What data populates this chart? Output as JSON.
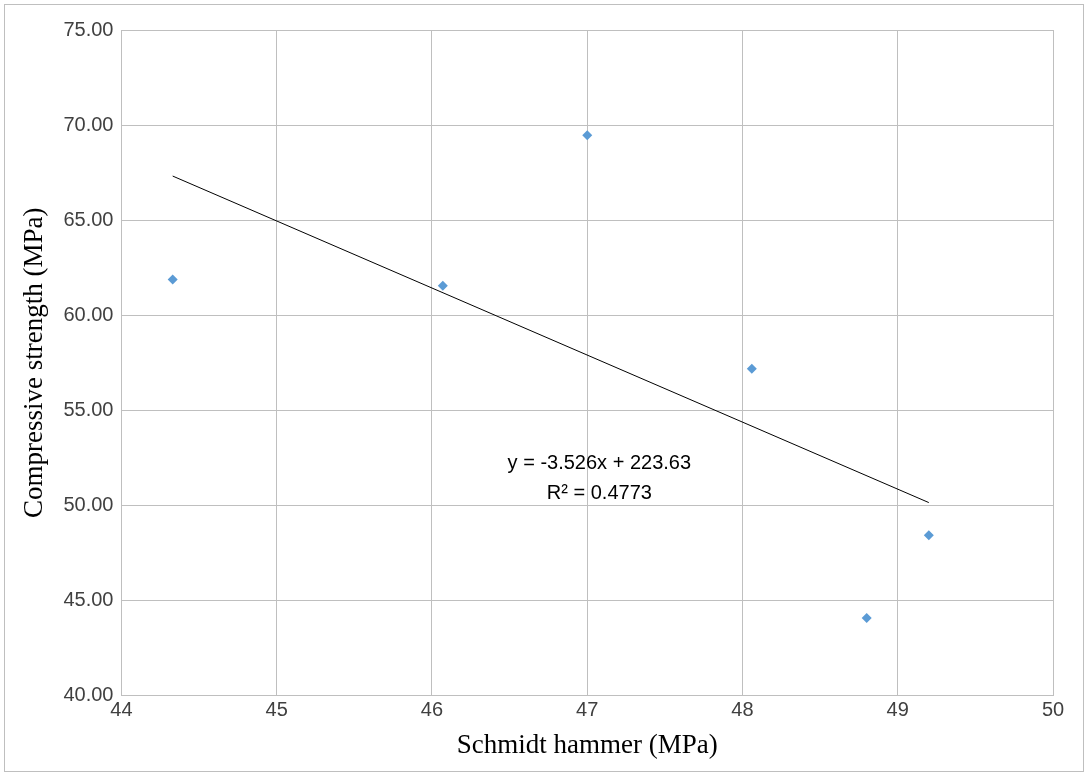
{
  "chart_data": {
    "type": "scatter",
    "xlabel": "Schmidt hammer (MPa)",
    "ylabel": "Compressive strength (MPa)",
    "xlim": [
      44,
      50
    ],
    "xticks": [
      44,
      45,
      46,
      47,
      48,
      49,
      50
    ],
    "ylim": [
      40,
      75
    ],
    "yticks": [
      {
        "value": 40,
        "label": "40.00"
      },
      {
        "value": 45,
        "label": "45.00"
      },
      {
        "value": 50,
        "label": "50.00"
      },
      {
        "value": 55,
        "label": "55.00"
      },
      {
        "value": 60,
        "label": "60.00"
      },
      {
        "value": 65,
        "label": "65.00"
      },
      {
        "value": 70,
        "label": "70.00"
      },
      {
        "value": 75,
        "label": "75.00"
      }
    ],
    "grid": true,
    "marker": "diamond",
    "series": [
      {
        "type": "scatter",
        "color": "#5b9bd5",
        "x": [
          44.33,
          46.07,
          47.0,
          48.06,
          48.8,
          49.2
        ],
        "values": [
          61.88,
          61.55,
          69.46,
          57.19,
          44.08,
          48.43
        ]
      },
      {
        "type": "line",
        "marker": "none",
        "color": "#000000",
        "x": [
          44.33,
          49.2
        ],
        "values": [
          67.32,
          50.15
        ]
      }
    ],
    "annotations": [
      "y = -3.526x + 223.63",
      "R² = 0.4773"
    ]
  }
}
